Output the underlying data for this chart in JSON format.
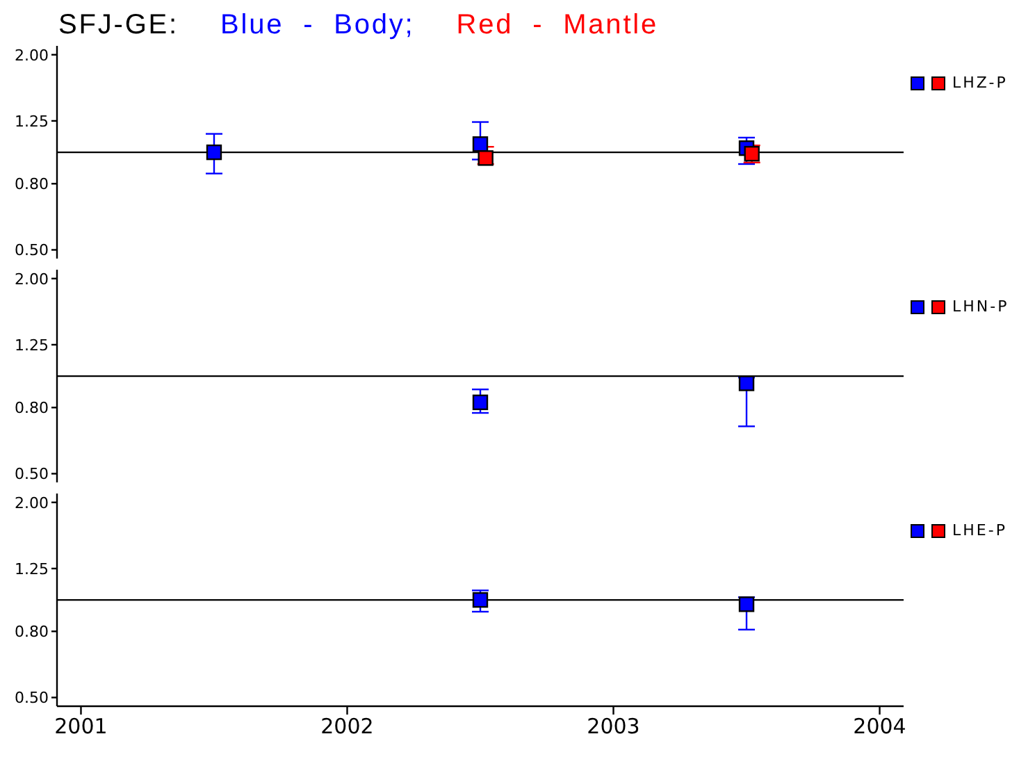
{
  "chart_data": [
    {
      "type": "scatter",
      "title": "SFJ-GE:",
      "legend": "top",
      "log": true,
      "marker": "square",
      "tick_labels": "y",
      "annotations": [
        "LHZ-P"
      ],
      "xlim": [
        2000.91,
        2004.09
      ],
      "xticks": [
        2001,
        2002,
        2003,
        2004
      ],
      "ylim": [
        0.47,
        2.13
      ],
      "yticks": [
        {
          "value": 0.5,
          "label": "0.50"
        },
        {
          "value": 0.8,
          "label": "0.80"
        },
        {
          "value": 1.25,
          "label": "1.25"
        },
        {
          "value": 2,
          "label": "2.00"
        }
      ],
      "ref_lines": [
        {
          "axis": "y",
          "value": 1,
          "color": "#000000"
        }
      ],
      "series": [
        {
          "name": "Blue - Body;",
          "color": "#0000ff",
          "x": [
            2001.5,
            2002.5,
            2003.5
          ],
          "values": [
            1.0,
            1.06,
            1.03
          ],
          "errors": [
            [
              0.86,
              1.14
            ],
            [
              0.95,
              1.24
            ],
            [
              0.92,
              1.11
            ]
          ]
        },
        {
          "name": "Red - Mantle",
          "color": "#ff0000",
          "x": [
            2002.52,
            2003.52
          ],
          "values": [
            0.96,
            0.99
          ],
          "errors": [
            [
              0.92,
              1.04
            ],
            [
              0.93,
              1.05
            ]
          ]
        }
      ]
    },
    {
      "type": "scatter",
      "log": true,
      "marker": "square",
      "tick_labels": "y",
      "annotations": [
        "LHN-P"
      ],
      "xlim": [
        2000.91,
        2004.09
      ],
      "xticks": [
        2001,
        2002,
        2003,
        2004
      ],
      "ylim": [
        0.47,
        2.13
      ],
      "yticks": [
        {
          "value": 0.5,
          "label": "0.50"
        },
        {
          "value": 0.8,
          "label": "0.80"
        },
        {
          "value": 1.25,
          "label": "1.25"
        },
        {
          "value": 2,
          "label": "2.00"
        }
      ],
      "ref_lines": [
        {
          "axis": "y",
          "value": 1,
          "color": "#000000"
        }
      ],
      "series": [
        {
          "color": "#0000ff",
          "x": [
            2002.5,
            2003.5
          ],
          "values": [
            0.83,
            0.95
          ],
          "errors": [
            [
              0.77,
              0.91
            ],
            [
              0.7,
              0.99
            ]
          ]
        },
        {
          "color": "#ff0000"
        }
      ]
    },
    {
      "type": "scatter",
      "log": true,
      "marker": "square",
      "annotations": [
        "LHE-P"
      ],
      "xlim": [
        2000.91,
        2004.09
      ],
      "xticks": [
        2001,
        2002,
        2003,
        2004
      ],
      "ylim": [
        0.47,
        2.13
      ],
      "yticks": [
        {
          "value": 0.5,
          "label": "0.50"
        },
        {
          "value": 0.8,
          "label": "0.80"
        },
        {
          "value": 1.25,
          "label": "1.25"
        },
        {
          "value": 2,
          "label": "2.00"
        }
      ],
      "ref_lines": [
        {
          "axis": "y",
          "value": 1,
          "color": "#000000"
        }
      ],
      "series": [
        {
          "color": "#0000ff",
          "x": [
            2002.5,
            2003.5
          ],
          "values": [
            1.0,
            0.97
          ],
          "errors": [
            [
              0.92,
              1.07
            ],
            [
              0.81,
              1.02
            ]
          ]
        },
        {
          "color": "#ff0000"
        }
      ]
    }
  ]
}
